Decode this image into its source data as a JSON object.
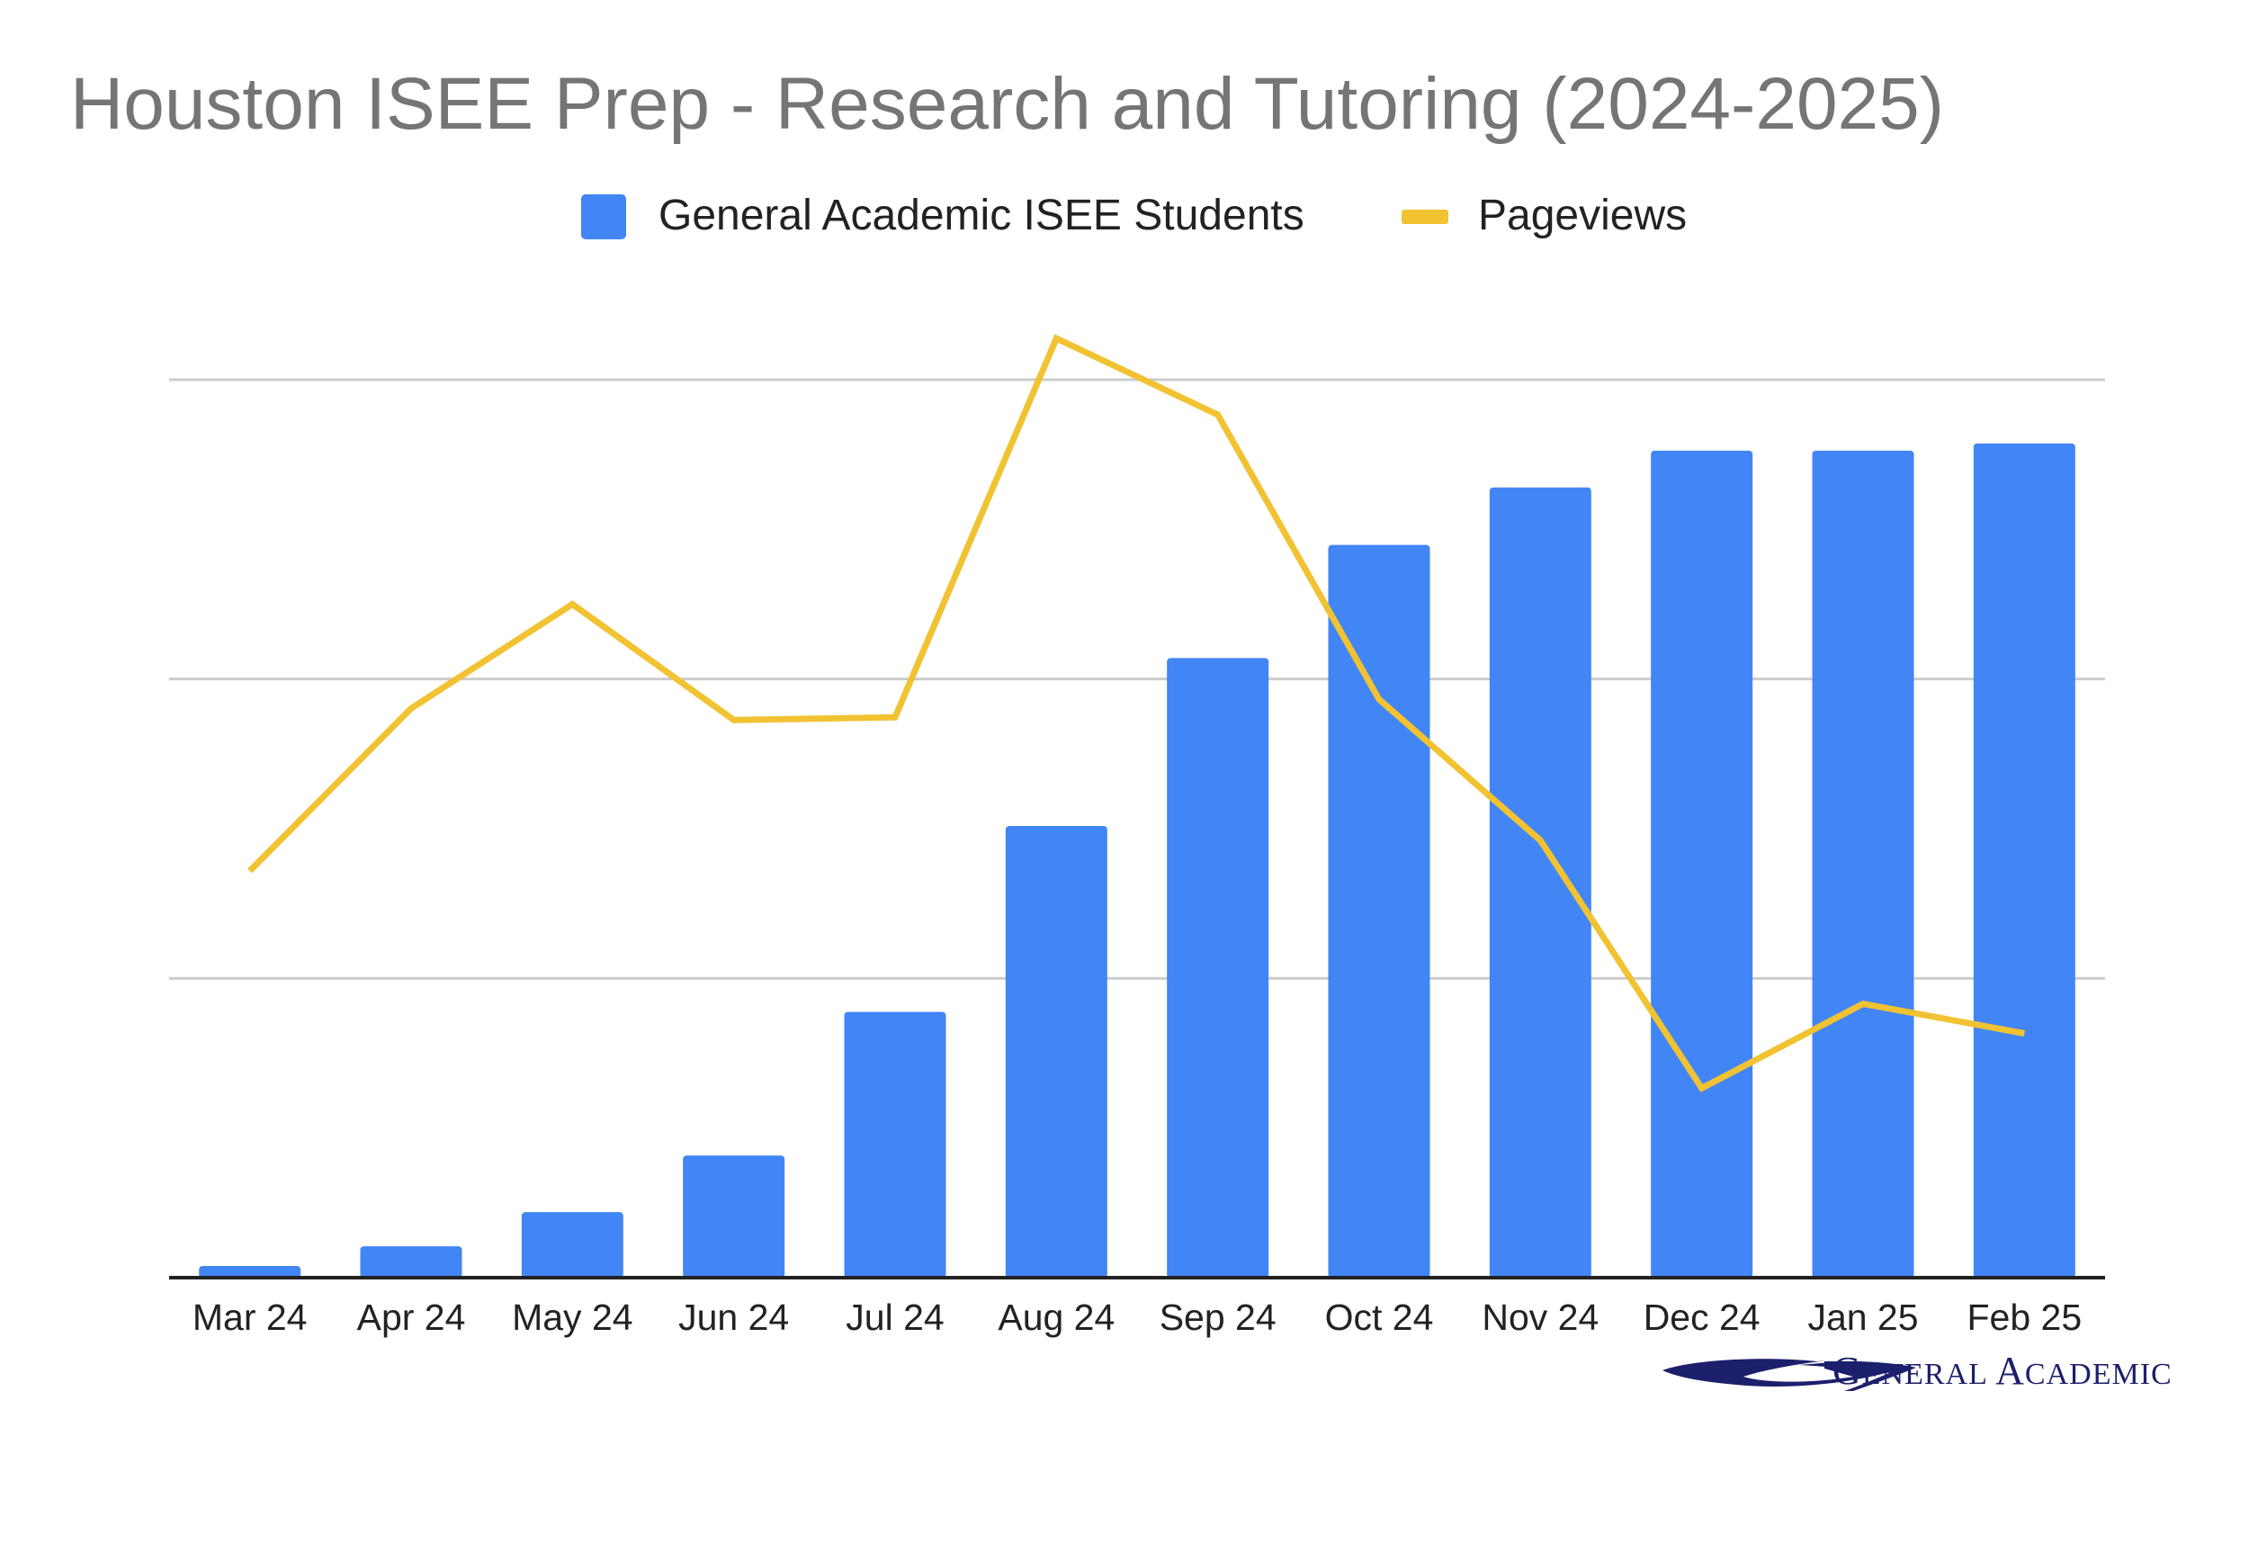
{
  "colors": {
    "bar": "#4285f4",
    "line": "#f1c232",
    "grid": "#cccccc",
    "axis": "#222222",
    "title": "#757575",
    "logo": "#1c1f6b"
  },
  "logo": {
    "text": "General Academic",
    "icon": "swoosh-logo-icon"
  },
  "chart_data": {
    "type": "bar",
    "title": "Houston ISEE Prep - Research and Tutoring (2024-2025)",
    "xlabel": "",
    "ylabel": "",
    "grid": true,
    "gridline_count": 3,
    "legend_position": "top-center",
    "y_axis_labels_shown": false,
    "ylim": [
      0,
      100
    ],
    "categories": [
      "Mar 24",
      "Apr 24",
      "May 24",
      "Jun 24",
      "Jul 24",
      "Aug 24",
      "Sep 24",
      "Oct 24",
      "Nov 24",
      "Dec 24",
      "Jan 25",
      "Feb 25"
    ],
    "series": [
      {
        "name": "General Academic ISEE Students",
        "type": "bar",
        "color": "#4285f4",
        "values": [
          1.3,
          3.5,
          7.3,
          13.6,
          29.6,
          50.3,
          69.0,
          81.6,
          88.0,
          92.1,
          92.1,
          92.9
        ]
      },
      {
        "name": "Pageviews",
        "type": "line",
        "color": "#f1c232",
        "values": [
          45.3,
          63.4,
          75.0,
          62.1,
          62.4,
          104.6,
          96.1,
          64.4,
          48.7,
          21.1,
          30.5,
          27.2
        ]
      }
    ]
  }
}
